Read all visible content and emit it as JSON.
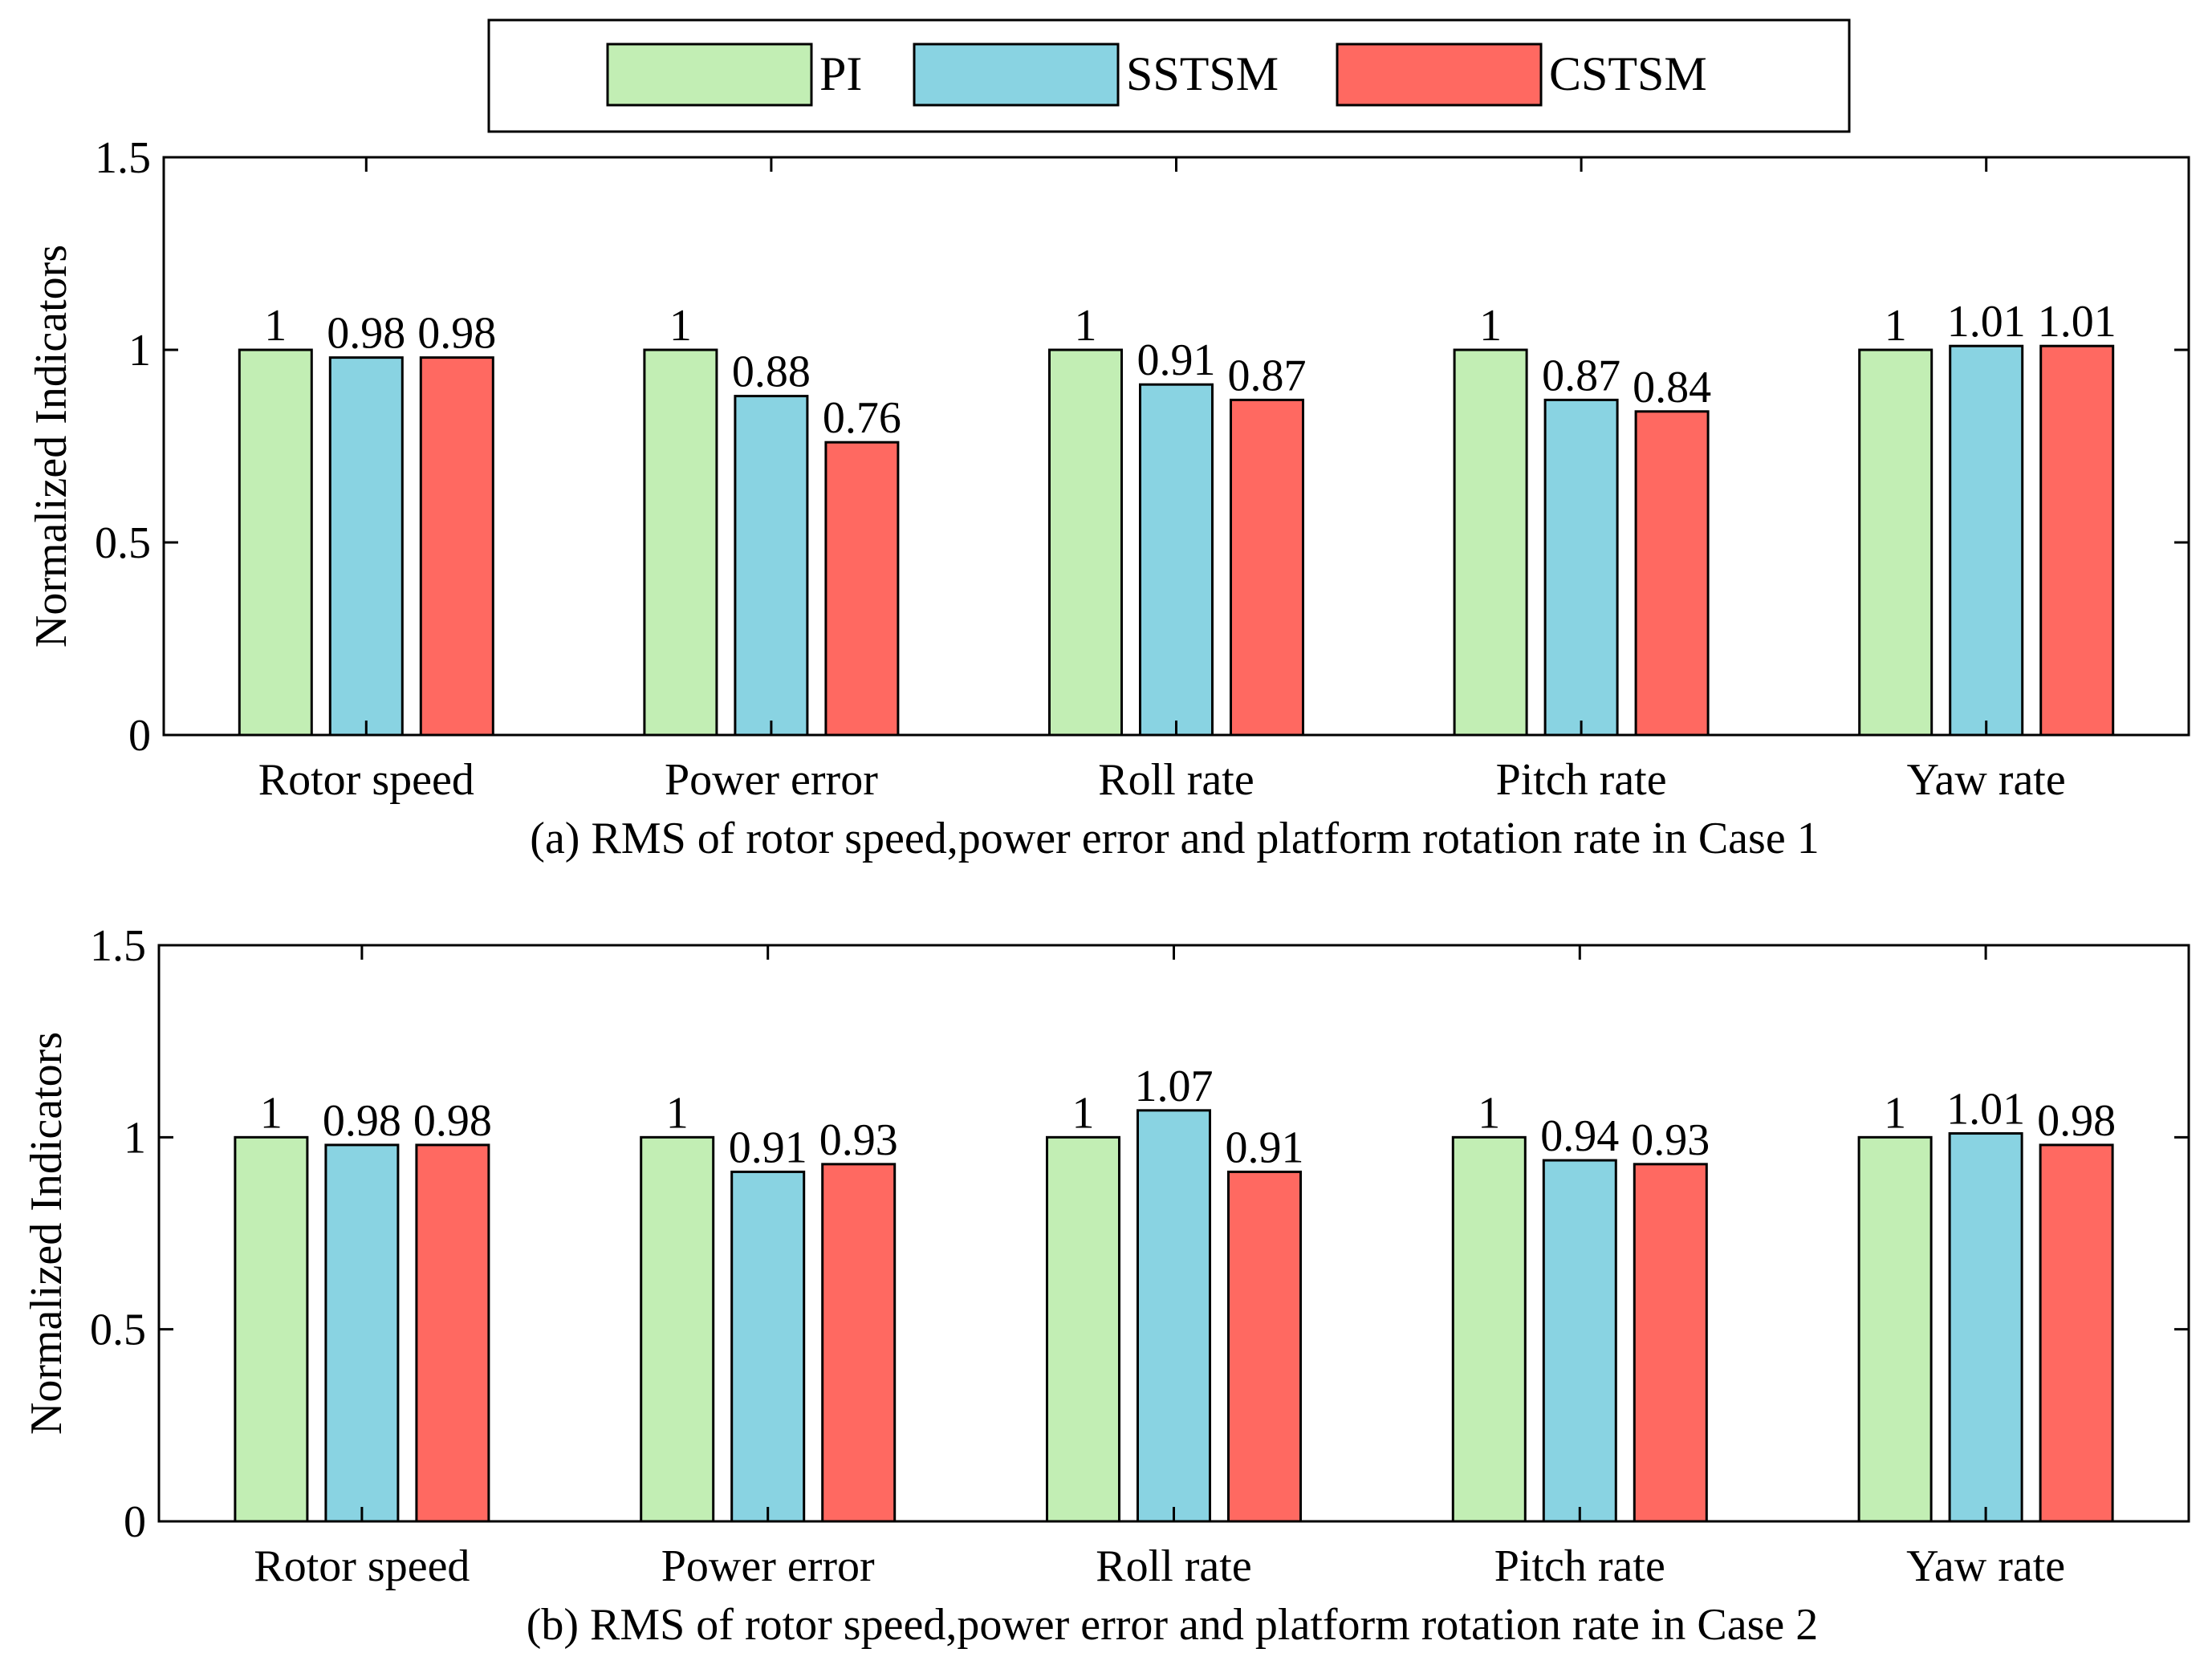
{
  "legend": {
    "entries": [
      {
        "name": "PI",
        "color": "#c2eeb4"
      },
      {
        "name": "SSTSM",
        "color": "#89d3e2"
      },
      {
        "name": "CSTSM",
        "color": "#ff6961"
      }
    ]
  },
  "chart_data": [
    {
      "type": "bar",
      "title": "(a) RMS of rotor speed,power error and platform rotation rate in Case 1",
      "xlabel": "",
      "ylabel": "Normalized Indicators",
      "ylim": [
        0,
        1.5
      ],
      "yticks": [
        0,
        0.5,
        1,
        1.5
      ],
      "ytick_labels": [
        "0",
        "0.5",
        "1",
        "1.5"
      ],
      "categories": [
        "Rotor speed",
        "Power error",
        "Roll rate",
        "Pitch rate",
        "Yaw rate"
      ],
      "series": [
        {
          "name": "PI",
          "values": [
            1,
            1,
            1,
            1,
            1
          ],
          "labels": [
            "1",
            "1",
            "1",
            "1",
            "1"
          ]
        },
        {
          "name": "SSTSM",
          "values": [
            0.98,
            0.88,
            0.91,
            0.87,
            1.01
          ],
          "labels": [
            "0.98",
            "0.88",
            "0.91",
            "0.87",
            "1.01"
          ]
        },
        {
          "name": "CSTSM",
          "values": [
            0.98,
            0.76,
            0.87,
            0.84,
            1.01
          ],
          "labels": [
            "0.98",
            "0.76",
            "0.87",
            "0.84",
            "1.01"
          ]
        }
      ]
    },
    {
      "type": "bar",
      "title": "(b) RMS of rotor speed,power error and platform rotation rate in Case 2",
      "xlabel": "",
      "ylabel": "Normalized Indicators",
      "ylim": [
        0,
        1.5
      ],
      "yticks": [
        0,
        0.5,
        1,
        1.5
      ],
      "ytick_labels": [
        "0",
        "0.5",
        "1",
        "1.5"
      ],
      "categories": [
        "Rotor speed",
        "Power error",
        "Roll rate",
        "Pitch rate",
        "Yaw rate"
      ],
      "series": [
        {
          "name": "PI",
          "values": [
            1,
            1,
            1,
            1,
            1
          ],
          "labels": [
            "1",
            "1",
            "1",
            "1",
            "1"
          ]
        },
        {
          "name": "SSTSM",
          "values": [
            0.98,
            0.91,
            1.07,
            0.94,
            1.01
          ],
          "labels": [
            "0.98",
            "0.91",
            "1.07",
            "0.94",
            "1.01"
          ]
        },
        {
          "name": "CSTSM",
          "values": [
            0.98,
            0.93,
            0.91,
            0.93,
            0.98
          ],
          "labels": [
            "0.98",
            "0.93",
            "0.91",
            "0.93",
            "0.98"
          ]
        }
      ]
    }
  ]
}
